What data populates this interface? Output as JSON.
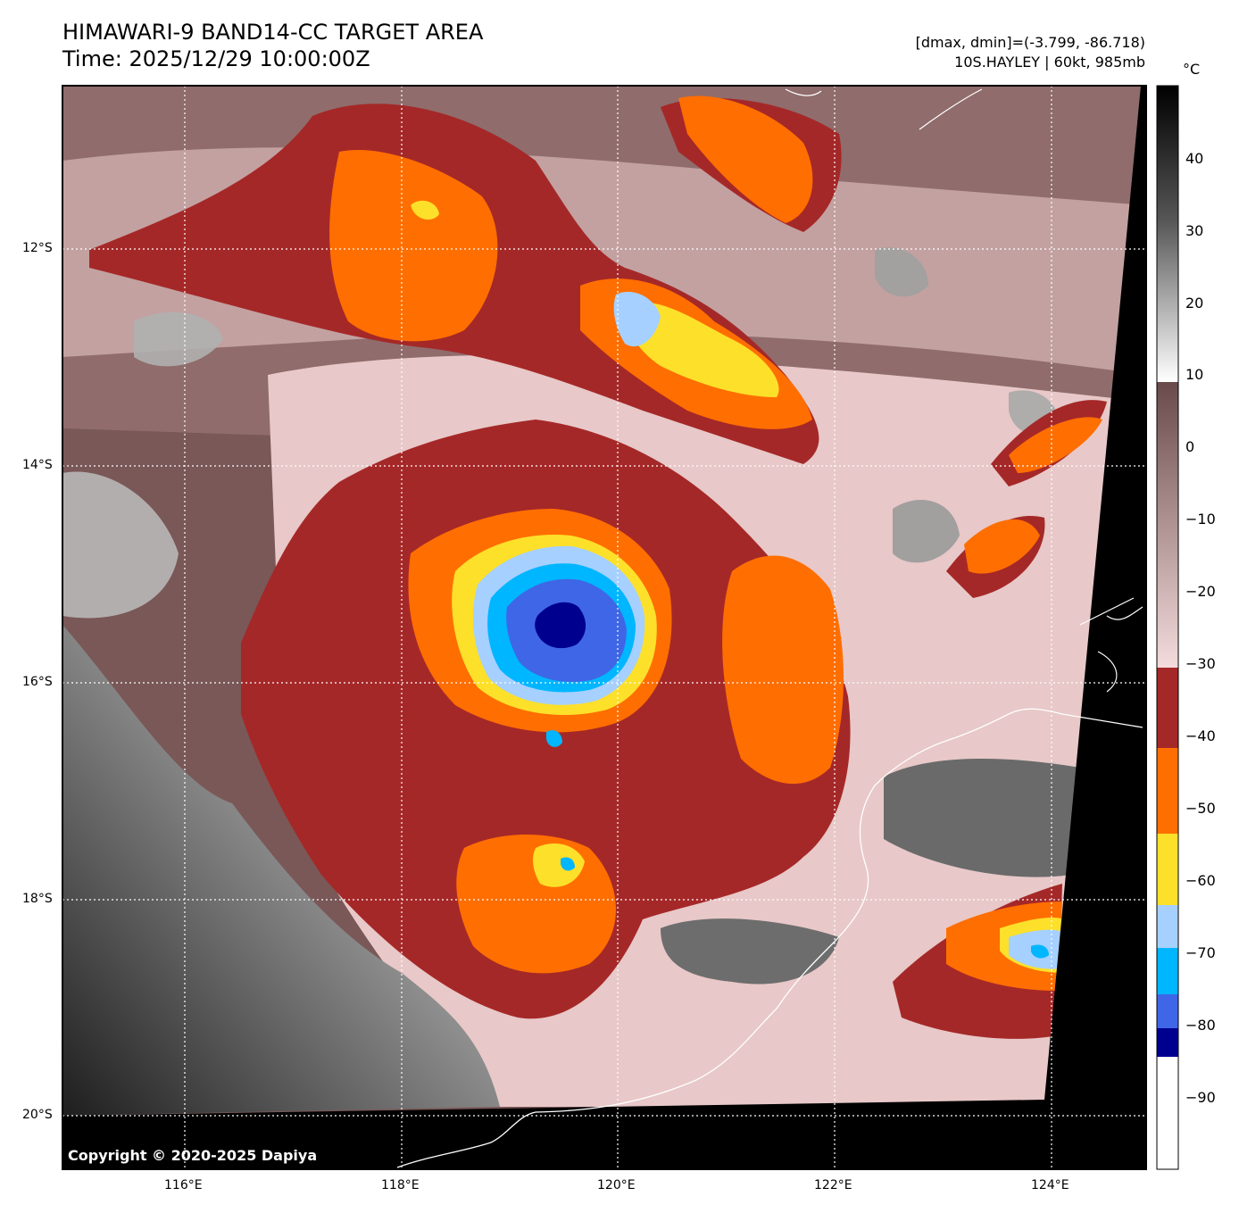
{
  "header": {
    "title_line1": "HIMAWARI-9 BAND14-CC TARGET AREA",
    "title_line2": "Time: 2025/12/29 10:00:00Z",
    "info_line1": "[dmax, dmin]=(-3.799, -86.718)",
    "info_line2": "10S.HAYLEY | 60kt, 985mb"
  },
  "map": {
    "lon_ticks": [
      "116°E",
      "118°E",
      "120°E",
      "122°E",
      "124°E"
    ],
    "lat_ticks": [
      "12°S",
      "14°S",
      "16°S",
      "18°S",
      "20°S"
    ],
    "copyright": "Copyright © 2020-2025 Dapiya",
    "colors": {
      "warm_cloud": "#6e4d4d",
      "light_pink": "#f0d4d4",
      "dark_red": "#a52828",
      "orange": "#ff6e00",
      "yellow": "#fde02a",
      "light_blue": "#a6d0ff",
      "cyan": "#00b6ff",
      "royal_blue": "#3f66e6",
      "navy": "#00008e",
      "no_data": "#000000"
    }
  },
  "colorbar": {
    "unit": "°C",
    "ticks": [
      "40",
      "30",
      "20",
      "10",
      "0",
      "−10",
      "−20",
      "−30",
      "−40",
      "−50",
      "−60",
      "−70",
      "−80",
      "−90"
    ]
  }
}
